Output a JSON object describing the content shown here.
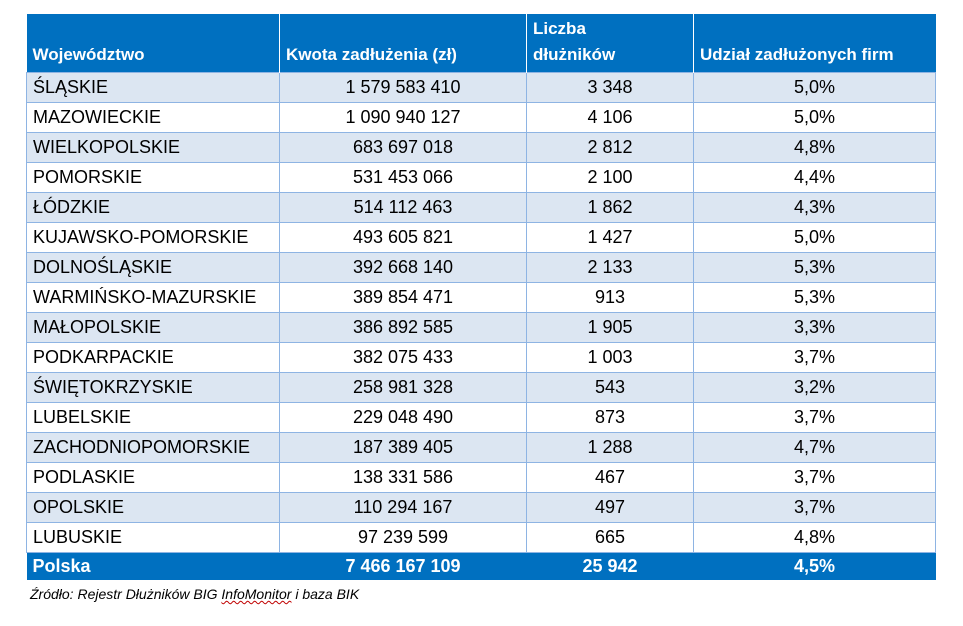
{
  "headers": {
    "region": "Województwo",
    "amount": "Kwota zadłużenia (zł)",
    "debtors_line1": "Liczba",
    "debtors_line2": "dłużników",
    "share": "Udział zadłużonych firm"
  },
  "rows": [
    {
      "region": "ŚLĄSKIE",
      "amount": "1 579 583 410",
      "debtors": "3 348",
      "share": "5,0%"
    },
    {
      "region": "MAZOWIECKIE",
      "amount": "1 090 940 127",
      "debtors": "4 106",
      "share": "5,0%"
    },
    {
      "region": "WIELKOPOLSKIE",
      "amount": "683 697 018",
      "debtors": "2 812",
      "share": "4,8%"
    },
    {
      "region": "POMORSKIE",
      "amount": "531 453 066",
      "debtors": "2 100",
      "share": "4,4%"
    },
    {
      "region": "ŁÓDZKIE",
      "amount": "514 112 463",
      "debtors": "1 862",
      "share": "4,3%"
    },
    {
      "region": "KUJAWSKO-POMORSKIE",
      "amount": "493 605 821",
      "debtors": "1 427",
      "share": "5,0%"
    },
    {
      "region": "DOLNOŚLĄSKIE",
      "amount": "392 668 140",
      "debtors": "2 133",
      "share": "5,3%"
    },
    {
      "region": "WARMIŃSKO-MAZURSKIE",
      "amount": "389 854 471",
      "debtors": "913",
      "share": "5,3%"
    },
    {
      "region": "MAŁOPOLSKIE",
      "amount": "386 892 585",
      "debtors": "1 905",
      "share": "3,3%"
    },
    {
      "region": "PODKARPACKIE",
      "amount": "382 075 433",
      "debtors": "1 003",
      "share": "3,7%"
    },
    {
      "region": "ŚWIĘTOKRZYSKIE",
      "amount": "258 981 328",
      "debtors": "543",
      "share": "3,2%"
    },
    {
      "region": "LUBELSKIE",
      "amount": "229 048 490",
      "debtors": "873",
      "share": "3,7%"
    },
    {
      "region": "ZACHODNIOPOMORSKIE",
      "amount": "187 389 405",
      "debtors": "1 288",
      "share": "4,7%"
    },
    {
      "region": "PODLASKIE",
      "amount": "138 331 586",
      "debtors": "467",
      "share": "3,7%"
    },
    {
      "region": "OPOLSKIE",
      "amount": "110 294 167",
      "debtors": "497",
      "share": "3,7%"
    },
    {
      "region": "LUBUSKIE",
      "amount": "97 239 599",
      "debtors": "665",
      "share": "4,8%"
    }
  ],
  "total": {
    "region": "Polska",
    "amount": "7 466 167 109",
    "debtors": "25 942",
    "share": "4,5%"
  },
  "source": {
    "prefix": "Źródło: Rejestr Dłużników BIG ",
    "highlight": "InfoMonitor",
    "suffix": " i baza BIK"
  },
  "colors": {
    "header_blue": "#0070c0",
    "row_stripe": "#dce6f2",
    "grid_border": "#8eb4e3"
  }
}
